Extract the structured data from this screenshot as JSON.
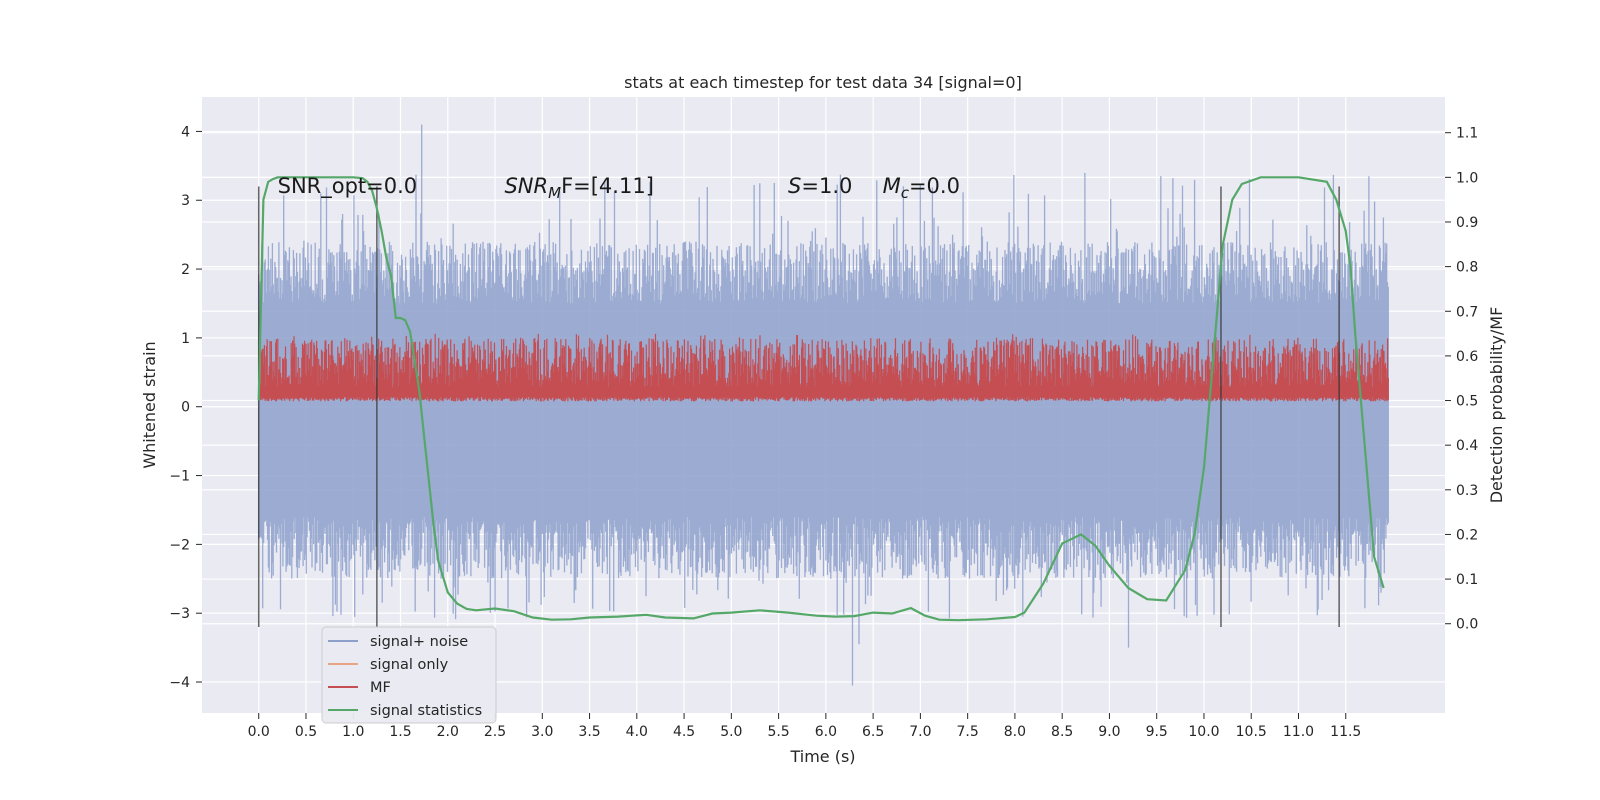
{
  "chart_data": {
    "type": "line",
    "title": "stats at each timestep for test data 34 [signal=0]",
    "xlabel": "Time (s)",
    "ylabel": "Whitened strain",
    "ylabel_right": "Detection probability/MF",
    "xlim": [
      -0.6,
      12.55
    ],
    "ylim": [
      -4.45,
      4.5
    ],
    "ylim_right": [
      -0.2,
      1.18
    ],
    "x_ticks": [
      0.0,
      0.5,
      1.0,
      1.5,
      2.0,
      2.5,
      3.0,
      3.5,
      4.0,
      4.5,
      5.0,
      5.5,
      6.0,
      6.5,
      7.0,
      7.5,
      8.0,
      8.5,
      9.0,
      9.5,
      10.0,
      10.5,
      11.0,
      11.5
    ],
    "x_tick_labels": [
      "0.0",
      "0.5",
      "1.0",
      "1.5",
      "2.0",
      "2.5",
      "3.0",
      "3.5",
      "4.0",
      "4.5",
      "5.0",
      "5.5",
      "6.0",
      "6.5",
      "7.0",
      "7.5",
      "8.0",
      "8.5",
      "9.0",
      "9.5",
      "10.0",
      "10.5",
      "11.0",
      "11.5"
    ],
    "y_ticks": [
      -4,
      -3,
      -2,
      -1,
      0,
      1,
      2,
      3,
      4
    ],
    "y_tick_labels": [
      "−4",
      "−3",
      "−2",
      "−1",
      "0",
      "1",
      "2",
      "3",
      "4"
    ],
    "y_ticks_right": [
      0.0,
      0.1,
      0.2,
      0.3,
      0.4,
      0.5,
      0.6,
      0.7,
      0.8,
      0.9,
      1.0,
      1.1
    ],
    "y_tick_labels_right": [
      "0.0",
      "0.1",
      "0.2",
      "0.3",
      "0.4",
      "0.5",
      "0.6",
      "0.7",
      "0.8",
      "0.9",
      "1.0",
      "1.1"
    ],
    "grid": true,
    "legend_position": "lower-left",
    "series": [
      {
        "name": "signal+ noise",
        "axis": "left",
        "color": "#8da0cb",
        "x_range": [
          0.0,
          11.95
        ],
        "envelope_upper": 1.8,
        "envelope_lower": -1.9,
        "peak_max": 4.1,
        "peak_min": -4.05
      },
      {
        "name": "signal only",
        "axis": "left",
        "color": "#e8a384",
        "x": [],
        "y": []
      },
      {
        "name": "MF",
        "axis": "right",
        "color": "#c44e52",
        "x_range": [
          0.0,
          11.95
        ],
        "band_low": 0.5,
        "band_high": 0.61
      },
      {
        "name": "signal statistics",
        "axis": "right",
        "color": "#55a868",
        "x": [
          0.0,
          0.05,
          0.1,
          0.15,
          0.2,
          0.3,
          0.5,
          0.8,
          1.0,
          1.1,
          1.15,
          1.2,
          1.25,
          1.3,
          1.35,
          1.4,
          1.45,
          1.5,
          1.55,
          1.6,
          1.65,
          1.7,
          1.75,
          1.8,
          1.85,
          1.9,
          2.0,
          2.1,
          2.2,
          2.3,
          2.5,
          2.7,
          2.9,
          3.1,
          3.3,
          3.5,
          3.8,
          4.1,
          4.3,
          4.6,
          4.8,
          5.0,
          5.3,
          5.6,
          5.9,
          6.1,
          6.3,
          6.5,
          6.7,
          6.9,
          7.05,
          7.2,
          7.4,
          7.7,
          8.0,
          8.1,
          8.3,
          8.5,
          8.7,
          8.85,
          9.0,
          9.2,
          9.4,
          9.6,
          9.8,
          9.9,
          10.0,
          10.1,
          10.2,
          10.3,
          10.4,
          10.6,
          11.0,
          11.3,
          11.4,
          11.5,
          11.55,
          11.6,
          11.7,
          11.8,
          11.9
        ],
        "y": [
          0.5,
          0.95,
          0.99,
          0.996,
          1.0,
          1.0,
          1.0,
          1.0,
          1.0,
          0.998,
          0.99,
          0.97,
          0.93,
          0.88,
          0.82,
          0.78,
          0.685,
          0.685,
          0.68,
          0.655,
          0.59,
          0.52,
          0.42,
          0.32,
          0.22,
          0.14,
          0.07,
          0.045,
          0.033,
          0.03,
          0.034,
          0.028,
          0.014,
          0.009,
          0.01,
          0.014,
          0.016,
          0.02,
          0.014,
          0.012,
          0.023,
          0.025,
          0.03,
          0.025,
          0.018,
          0.016,
          0.017,
          0.025,
          0.023,
          0.035,
          0.018,
          0.009,
          0.008,
          0.01,
          0.015,
          0.025,
          0.09,
          0.18,
          0.2,
          0.175,
          0.13,
          0.08,
          0.055,
          0.052,
          0.12,
          0.2,
          0.35,
          0.6,
          0.85,
          0.95,
          0.985,
          1.0,
          1.0,
          0.99,
          0.95,
          0.88,
          0.8,
          0.65,
          0.4,
          0.15,
          0.08
        ]
      }
    ],
    "vertical_markers_x": [
      0.0,
      1.25,
      10.18,
      11.43
    ],
    "vertical_markers_yrange": [
      -3.2,
      3.2
    ],
    "annotations": [
      {
        "text": "SNR_opt=0.0",
        "x": 0.2,
        "y": 3.25
      },
      {
        "text": "SNR",
        "sub": "M",
        "rest": "F=[4.11]",
        "x": 2.6,
        "y": 3.25,
        "italic_parts": [
          "SNR",
          "M"
        ]
      },
      {
        "text": "S",
        "rest": "=1.0",
        "x": 5.6,
        "y": 3.25,
        "italic_parts": [
          "S"
        ]
      },
      {
        "text": "M",
        "sub": "c",
        "rest": "=0.0",
        "x": 6.6,
        "y": 3.25,
        "italic_parts": [
          "M",
          "c"
        ]
      }
    ]
  }
}
